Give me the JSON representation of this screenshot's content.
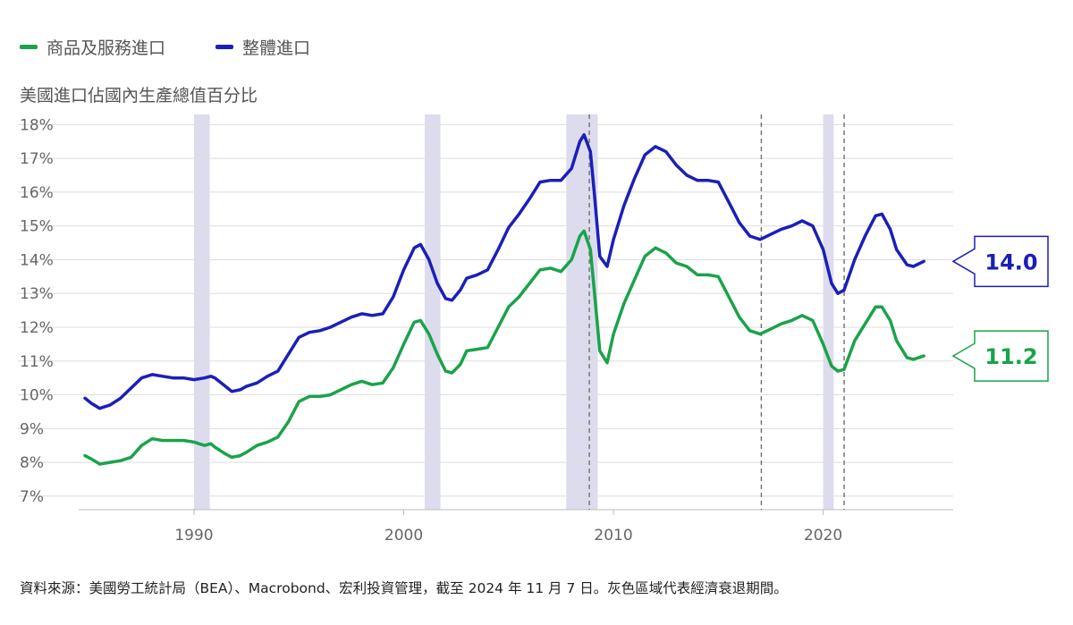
{
  "legend": [
    {
      "label": "商品及服務進口",
      "color": "#1aa34a"
    },
    {
      "label": "整體進口",
      "color": "#1b1fb8"
    }
  ],
  "source_note": "資料來源：美國勞工統計局（BEA）、Macrobond、宏利投資管理，截至 2024 年 11 月 7 日。灰色區域代表經濟衰退期間。",
  "chart_data": {
    "type": "line",
    "title": "美國進口佔國內生產總值百分比",
    "xlabel": "",
    "ylabel": "",
    "xlim": [
      1984.5,
      2026.2
    ],
    "ylim": [
      6.6,
      18.3
    ],
    "x_ticks": [
      1990,
      2000,
      2010,
      2020
    ],
    "y_ticks": [
      {
        "value": 7,
        "label": "7%"
      },
      {
        "value": 8,
        "label": "8%"
      },
      {
        "value": 9,
        "label": "9%"
      },
      {
        "value": 10,
        "label": "10%"
      },
      {
        "value": 11,
        "label": "11%"
      },
      {
        "value": 12,
        "label": "12%"
      },
      {
        "value": 13,
        "label": "13%"
      },
      {
        "value": 14,
        "label": "14%"
      },
      {
        "value": 15,
        "label": "15%"
      },
      {
        "value": 16,
        "label": "16%"
      },
      {
        "value": 17,
        "label": "17%"
      },
      {
        "value": 18,
        "label": "18%"
      }
    ],
    "grid": true,
    "recessions": [
      [
        1990.0,
        1990.75
      ],
      [
        2001.0,
        2001.75
      ],
      [
        2007.75,
        2009.25
      ],
      [
        2020.0,
        2020.5
      ]
    ],
    "reference_lines": [
      2008.85,
      2017.05,
      2021.0
    ],
    "series": [
      {
        "name": "商品及服務進口",
        "color": "#1aa34a",
        "last_label": "11.2",
        "points": [
          [
            1984.8,
            8.2
          ],
          [
            1985.1,
            8.1
          ],
          [
            1985.5,
            7.95
          ],
          [
            1986.0,
            8.0
          ],
          [
            1986.5,
            8.05
          ],
          [
            1987.0,
            8.15
          ],
          [
            1987.5,
            8.5
          ],
          [
            1988.0,
            8.7
          ],
          [
            1988.5,
            8.65
          ],
          [
            1989.0,
            8.65
          ],
          [
            1989.5,
            8.65
          ],
          [
            1990.0,
            8.6
          ],
          [
            1990.5,
            8.5
          ],
          [
            1990.8,
            8.55
          ],
          [
            1991.0,
            8.45
          ],
          [
            1991.5,
            8.25
          ],
          [
            1991.8,
            8.15
          ],
          [
            1992.2,
            8.2
          ],
          [
            1992.5,
            8.3
          ],
          [
            1993.0,
            8.5
          ],
          [
            1993.5,
            8.6
          ],
          [
            1994.0,
            8.75
          ],
          [
            1994.5,
            9.2
          ],
          [
            1995.0,
            9.8
          ],
          [
            1995.5,
            9.95
          ],
          [
            1996.0,
            9.95
          ],
          [
            1996.5,
            10.0
          ],
          [
            1997.0,
            10.15
          ],
          [
            1997.5,
            10.3
          ],
          [
            1998.0,
            10.4
          ],
          [
            1998.5,
            10.3
          ],
          [
            1999.0,
            10.35
          ],
          [
            1999.5,
            10.8
          ],
          [
            2000.0,
            11.5
          ],
          [
            2000.5,
            12.15
          ],
          [
            2000.8,
            12.2
          ],
          [
            2001.2,
            11.8
          ],
          [
            2001.6,
            11.2
          ],
          [
            2002.0,
            10.7
          ],
          [
            2002.3,
            10.65
          ],
          [
            2002.7,
            10.9
          ],
          [
            2003.0,
            11.3
          ],
          [
            2003.5,
            11.35
          ],
          [
            2004.0,
            11.4
          ],
          [
            2004.5,
            12.0
          ],
          [
            2005.0,
            12.6
          ],
          [
            2005.5,
            12.9
          ],
          [
            2006.0,
            13.3
          ],
          [
            2006.5,
            13.7
          ],
          [
            2007.0,
            13.75
          ],
          [
            2007.5,
            13.65
          ],
          [
            2008.0,
            14.0
          ],
          [
            2008.4,
            14.7
          ],
          [
            2008.6,
            14.85
          ],
          [
            2008.9,
            14.3
          ],
          [
            2009.1,
            13.0
          ],
          [
            2009.35,
            11.3
          ],
          [
            2009.7,
            10.95
          ],
          [
            2010.0,
            11.8
          ],
          [
            2010.5,
            12.7
          ],
          [
            2011.0,
            13.4
          ],
          [
            2011.5,
            14.1
          ],
          [
            2012.0,
            14.35
          ],
          [
            2012.5,
            14.2
          ],
          [
            2013.0,
            13.9
          ],
          [
            2013.5,
            13.8
          ],
          [
            2014.0,
            13.55
          ],
          [
            2014.5,
            13.55
          ],
          [
            2015.0,
            13.5
          ],
          [
            2015.5,
            12.9
          ],
          [
            2016.0,
            12.3
          ],
          [
            2016.5,
            11.9
          ],
          [
            2017.0,
            11.8
          ],
          [
            2017.5,
            11.95
          ],
          [
            2018.0,
            12.1
          ],
          [
            2018.5,
            12.2
          ],
          [
            2019.0,
            12.35
          ],
          [
            2019.5,
            12.2
          ],
          [
            2020.0,
            11.5
          ],
          [
            2020.4,
            10.85
          ],
          [
            2020.7,
            10.7
          ],
          [
            2021.0,
            10.75
          ],
          [
            2021.5,
            11.6
          ],
          [
            2022.0,
            12.1
          ],
          [
            2022.5,
            12.6
          ],
          [
            2022.8,
            12.6
          ],
          [
            2023.2,
            12.2
          ],
          [
            2023.5,
            11.6
          ],
          [
            2024.0,
            11.1
          ],
          [
            2024.3,
            11.05
          ],
          [
            2024.8,
            11.15
          ]
        ]
      },
      {
        "name": "整體進口",
        "color": "#1b1fb8",
        "last_label": "14.0",
        "points": [
          [
            1984.8,
            9.9
          ],
          [
            1985.1,
            9.75
          ],
          [
            1985.5,
            9.6
          ],
          [
            1986.0,
            9.7
          ],
          [
            1986.5,
            9.9
          ],
          [
            1987.0,
            10.2
          ],
          [
            1987.5,
            10.5
          ],
          [
            1988.0,
            10.6
          ],
          [
            1988.5,
            10.55
          ],
          [
            1989.0,
            10.5
          ],
          [
            1989.5,
            10.5
          ],
          [
            1990.0,
            10.45
          ],
          [
            1990.5,
            10.5
          ],
          [
            1990.8,
            10.55
          ],
          [
            1991.0,
            10.5
          ],
          [
            1991.5,
            10.25
          ],
          [
            1991.8,
            10.1
          ],
          [
            1992.2,
            10.15
          ],
          [
            1992.5,
            10.25
          ],
          [
            1993.0,
            10.35
          ],
          [
            1993.5,
            10.55
          ],
          [
            1994.0,
            10.7
          ],
          [
            1994.5,
            11.2
          ],
          [
            1995.0,
            11.7
          ],
          [
            1995.5,
            11.85
          ],
          [
            1996.0,
            11.9
          ],
          [
            1996.5,
            12.0
          ],
          [
            1997.0,
            12.15
          ],
          [
            1997.5,
            12.3
          ],
          [
            1998.0,
            12.4
          ],
          [
            1998.5,
            12.35
          ],
          [
            1999.0,
            12.4
          ],
          [
            1999.5,
            12.9
          ],
          [
            2000.0,
            13.7
          ],
          [
            2000.5,
            14.35
          ],
          [
            2000.8,
            14.45
          ],
          [
            2001.2,
            14.0
          ],
          [
            2001.6,
            13.3
          ],
          [
            2002.0,
            12.85
          ],
          [
            2002.3,
            12.8
          ],
          [
            2002.7,
            13.1
          ],
          [
            2003.0,
            13.45
          ],
          [
            2003.5,
            13.55
          ],
          [
            2004.0,
            13.7
          ],
          [
            2004.5,
            14.3
          ],
          [
            2005.0,
            14.95
          ],
          [
            2005.5,
            15.35
          ],
          [
            2006.0,
            15.8
          ],
          [
            2006.5,
            16.3
          ],
          [
            2007.0,
            16.35
          ],
          [
            2007.5,
            16.35
          ],
          [
            2008.0,
            16.7
          ],
          [
            2008.4,
            17.5
          ],
          [
            2008.6,
            17.7
          ],
          [
            2008.9,
            17.2
          ],
          [
            2009.1,
            15.9
          ],
          [
            2009.35,
            14.1
          ],
          [
            2009.7,
            13.8
          ],
          [
            2010.0,
            14.6
          ],
          [
            2010.5,
            15.6
          ],
          [
            2011.0,
            16.4
          ],
          [
            2011.5,
            17.1
          ],
          [
            2012.0,
            17.35
          ],
          [
            2012.5,
            17.2
          ],
          [
            2013.0,
            16.8
          ],
          [
            2013.5,
            16.5
          ],
          [
            2014.0,
            16.35
          ],
          [
            2014.5,
            16.35
          ],
          [
            2015.0,
            16.3
          ],
          [
            2015.5,
            15.7
          ],
          [
            2016.0,
            15.1
          ],
          [
            2016.5,
            14.7
          ],
          [
            2017.0,
            14.6
          ],
          [
            2017.5,
            14.75
          ],
          [
            2018.0,
            14.9
          ],
          [
            2018.5,
            15.0
          ],
          [
            2019.0,
            15.15
          ],
          [
            2019.5,
            15.0
          ],
          [
            2020.0,
            14.3
          ],
          [
            2020.4,
            13.3
          ],
          [
            2020.7,
            13.0
          ],
          [
            2021.0,
            13.1
          ],
          [
            2021.5,
            14.0
          ],
          [
            2022.0,
            14.7
          ],
          [
            2022.5,
            15.3
          ],
          [
            2022.8,
            15.35
          ],
          [
            2023.2,
            14.9
          ],
          [
            2023.5,
            14.3
          ],
          [
            2024.0,
            13.85
          ],
          [
            2024.3,
            13.8
          ],
          [
            2024.8,
            13.95
          ]
        ]
      }
    ]
  }
}
